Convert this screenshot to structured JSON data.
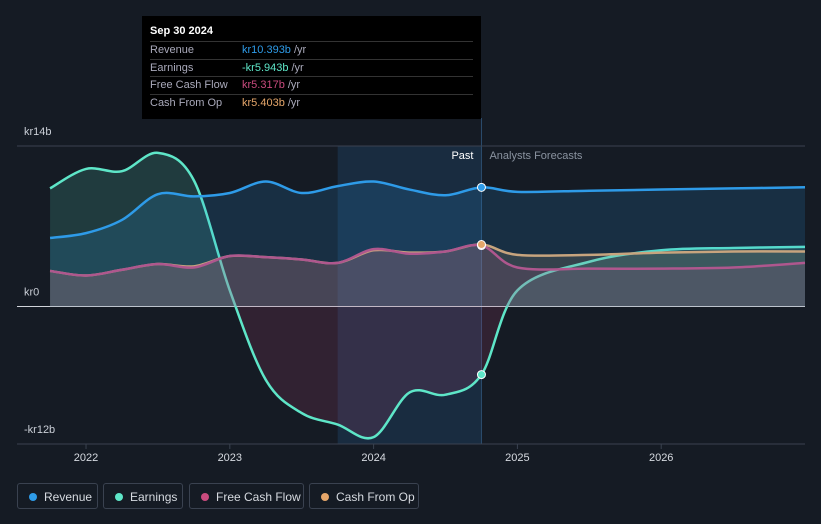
{
  "chart_data": {
    "type": "line",
    "x": [
      2021.75,
      2022.0,
      2022.25,
      2022.5,
      2022.75,
      2023.0,
      2023.25,
      2023.5,
      2023.75,
      2024.0,
      2024.25,
      2024.5,
      2024.75,
      2025.0,
      2025.5,
      2026.0,
      2026.5,
      2027.0
    ],
    "series": [
      {
        "name": "Revenue",
        "color": "#2e9be8",
        "values": [
          5.97,
          6.4,
          7.55,
          9.8,
          9.6,
          9.9,
          10.9,
          9.9,
          10.5,
          10.9,
          10.2,
          9.7,
          10.393,
          10.0,
          10.1,
          10.2,
          10.3,
          10.4
        ]
      },
      {
        "name": "Earnings",
        "color": "#5ee6c8",
        "values": [
          10.3,
          12.0,
          11.8,
          13.4,
          11.0,
          1.4,
          -6.4,
          -9.3,
          -10.3,
          -11.4,
          -7.5,
          -7.7,
          -5.943,
          1.4,
          3.9,
          4.9,
          5.1,
          5.2
        ]
      },
      {
        "name": "Free Cash Flow",
        "color": "#c94b7e",
        "values": [
          3.1,
          2.7,
          3.2,
          3.7,
          3.4,
          4.4,
          4.3,
          4.1,
          3.8,
          5.0,
          4.6,
          4.8,
          5.317,
          3.4,
          3.3,
          3.3,
          3.4,
          3.8
        ]
      },
      {
        "name": "Cash From Op",
        "color": "#e5a66a",
        "values": [
          3.1,
          2.7,
          3.2,
          3.7,
          3.5,
          4.4,
          4.3,
          4.1,
          3.8,
          4.9,
          4.7,
          4.8,
          5.403,
          4.5,
          4.5,
          4.7,
          4.8,
          4.8
        ]
      }
    ],
    "xlim": [
      2021.52,
      2027.0
    ],
    "xticks": [
      2022,
      2023,
      2024,
      2025,
      2026
    ],
    "ylim": [
      -12,
      14
    ],
    "yticks": [
      {
        "value": 14,
        "label": "kr14b"
      },
      {
        "value": 0,
        "label": "kr0"
      },
      {
        "value": -12,
        "label": "-kr12b"
      }
    ],
    "grid": true,
    "highlight": [
      2023.75,
      2024.75
    ],
    "past_label": "Past",
    "forecast_label": "Analysts Forecasts"
  },
  "tooltip": {
    "title": "Sep 30 2024",
    "rows": [
      {
        "label": "Revenue",
        "value": "kr10.393b",
        "unit": "/yr"
      },
      {
        "label": "Earnings",
        "value": "-kr5.943b",
        "unit": "/yr"
      },
      {
        "label": "Free Cash Flow",
        "value": "kr5.317b",
        "unit": "/yr"
      },
      {
        "label": "Cash From Op",
        "value": "kr5.403b",
        "unit": "/yr"
      }
    ]
  }
}
